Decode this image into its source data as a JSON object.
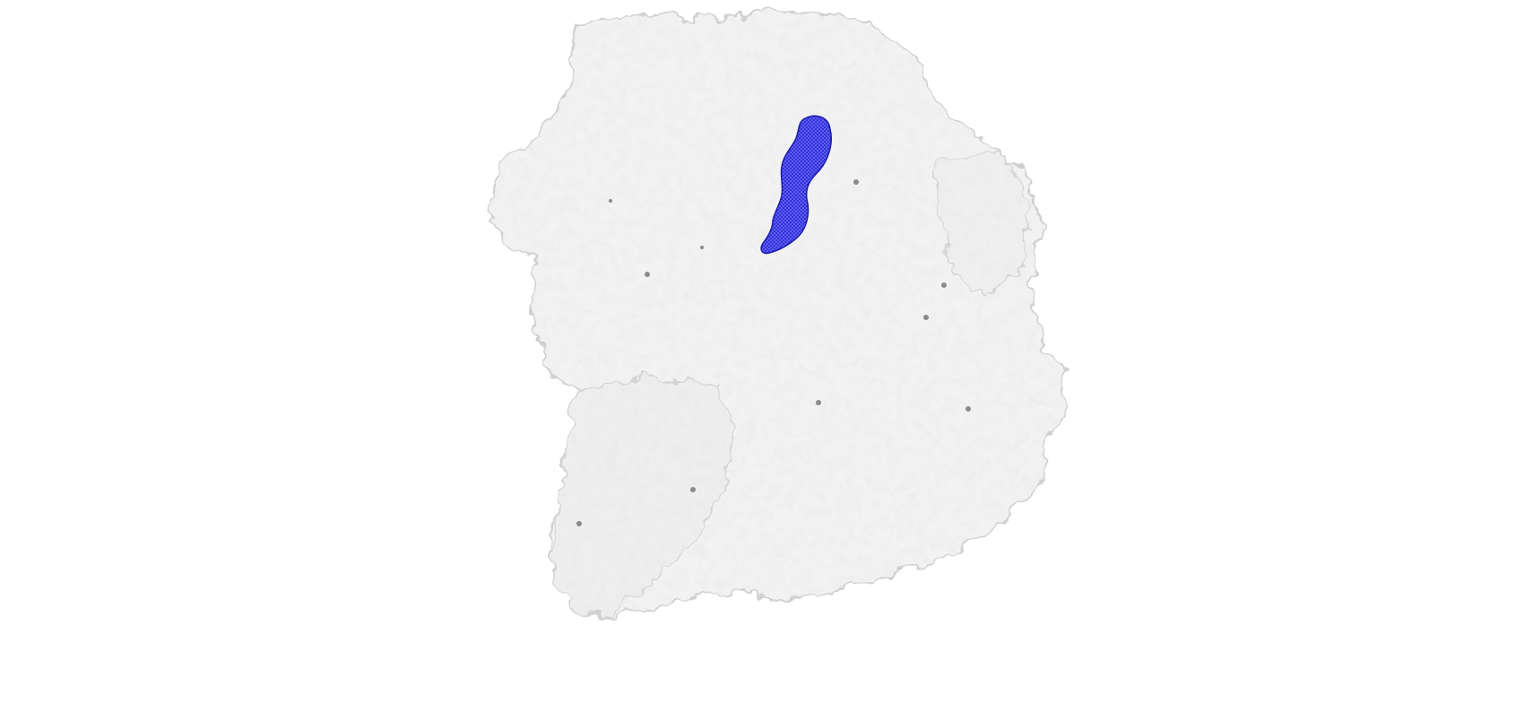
{
  "viewer": {
    "background_color": "#ffffff",
    "molecule_surface": {
      "color": "#f1f1f1",
      "shadow_color": "#d6d6d6",
      "edge_color": "#c4c4c4"
    },
    "highlighted_ligand": {
      "color": "#2b2bd6",
      "mesh_color": "#7070ff",
      "render_style": "mesh"
    },
    "small_spheres": {
      "color": "#8a8a8a"
    }
  }
}
